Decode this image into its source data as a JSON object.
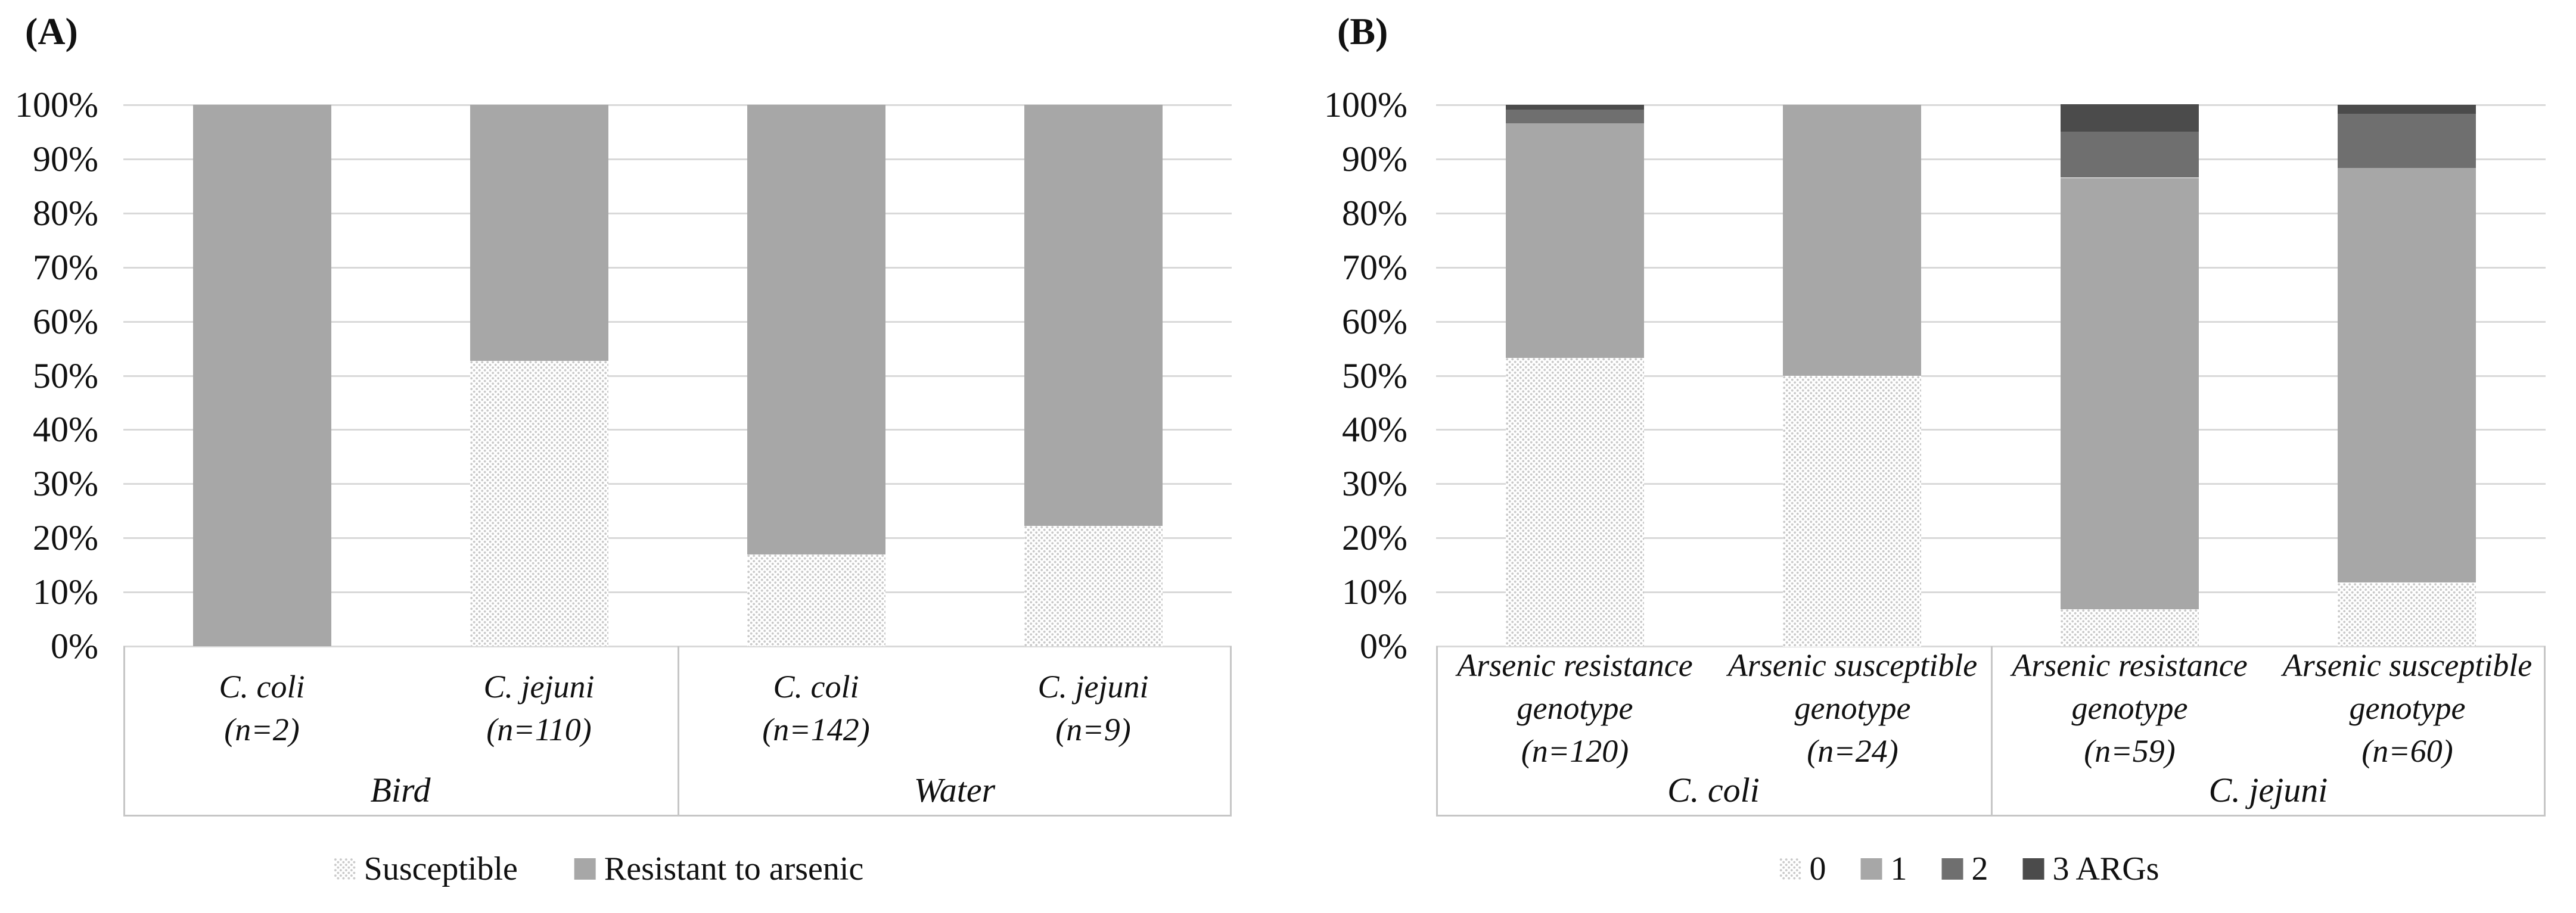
{
  "figure": {
    "background": "#ffffff",
    "text_color": "#111111",
    "gridline_color": "#d9d9d9",
    "axis_box_color": "#c6c6c6"
  },
  "chart_data": [
    {
      "panel": "A",
      "type": "bar",
      "stacked": true,
      "units": "percent",
      "title": "(A)",
      "xlabel": "",
      "ylabel": "",
      "ylim": [
        0,
        100
      ],
      "grid": true,
      "legend_position": "bottom",
      "y_ticks": [
        "100%",
        "90%",
        "80%",
        "70%",
        "60%",
        "50%",
        "40%",
        "30%",
        "20%",
        "10%",
        "0%"
      ],
      "groups": [
        "Bird",
        "Water"
      ],
      "categories": [
        {
          "lines": [
            "C. coli",
            "(n=2)"
          ],
          "n": 2,
          "group": "Bird"
        },
        {
          "lines": [
            "C. jejuni",
            "(n=110)"
          ],
          "n": 110,
          "group": "Bird"
        },
        {
          "lines": [
            "C. coli",
            "(n=142)"
          ],
          "n": 142,
          "group": "Water"
        },
        {
          "lines": [
            "C. jejuni",
            "(n=9)"
          ],
          "n": 9,
          "group": "Water"
        }
      ],
      "series": [
        {
          "name": "Susceptible",
          "style": "dotted",
          "dot_color": "#c9c9c9",
          "values": [
            0,
            52.7,
            16.9,
            22.2
          ]
        },
        {
          "name": "Resistant to arsenic",
          "style": "solid",
          "color": "#a7a7a7",
          "values": [
            100,
            47.3,
            83.1,
            77.8
          ]
        }
      ],
      "legend": [
        {
          "label": "Susceptible",
          "swatch": "dotted"
        },
        {
          "label": "Resistant to arsenic",
          "swatch": "#a7a7a7"
        }
      ]
    },
    {
      "panel": "B",
      "type": "bar",
      "stacked": true,
      "units": "percent",
      "title": "(B)",
      "xlabel": "",
      "ylabel": "",
      "ylim": [
        0,
        100
      ],
      "grid": true,
      "legend_position": "bottom",
      "y_ticks": [
        "100%",
        "90%",
        "80%",
        "70%",
        "60%",
        "50%",
        "40%",
        "30%",
        "20%",
        "10%",
        "0%"
      ],
      "groups": [
        "C. coli",
        "C. jejuni"
      ],
      "categories": [
        {
          "lines": [
            "Arsenic resistance",
            "genotype",
            "(n=120)"
          ],
          "n": 120,
          "group": "C. coli"
        },
        {
          "lines": [
            "Arsenic susceptible",
            "genotype",
            "(n=24)"
          ],
          "n": 24,
          "group": "C. coli"
        },
        {
          "lines": [
            "Arsenic resistance",
            "genotype",
            "(n=59)"
          ],
          "n": 59,
          "group": "C. jejuni"
        },
        {
          "lines": [
            "Arsenic susceptible",
            "genotype",
            "(n=60)"
          ],
          "n": 60,
          "group": "C. jejuni"
        }
      ],
      "series": [
        {
          "name": "0",
          "style": "dotted",
          "dot_color": "#c9c9c9",
          "values": [
            53.3,
            50.0,
            6.8,
            11.7
          ]
        },
        {
          "name": "1",
          "style": "solid",
          "color": "#a7a7a7",
          "values": [
            43.3,
            50.0,
            79.7,
            76.6
          ]
        },
        {
          "name": "2",
          "style": "solid",
          "color": "#6f6f6f",
          "values": [
            2.5,
            0,
            8.5,
            10.0
          ]
        },
        {
          "name": "3 ARGs",
          "style": "solid",
          "color": "#4b4b4b",
          "values": [
            0.9,
            0,
            5.1,
            1.7
          ]
        }
      ],
      "legend": [
        {
          "label": "0",
          "swatch": "dotted"
        },
        {
          "label": "1",
          "swatch": "#a7a7a7"
        },
        {
          "label": "2",
          "swatch": "#6f6f6f"
        },
        {
          "label": "3 ARGs",
          "swatch": "#4b4b4b"
        }
      ]
    }
  ]
}
